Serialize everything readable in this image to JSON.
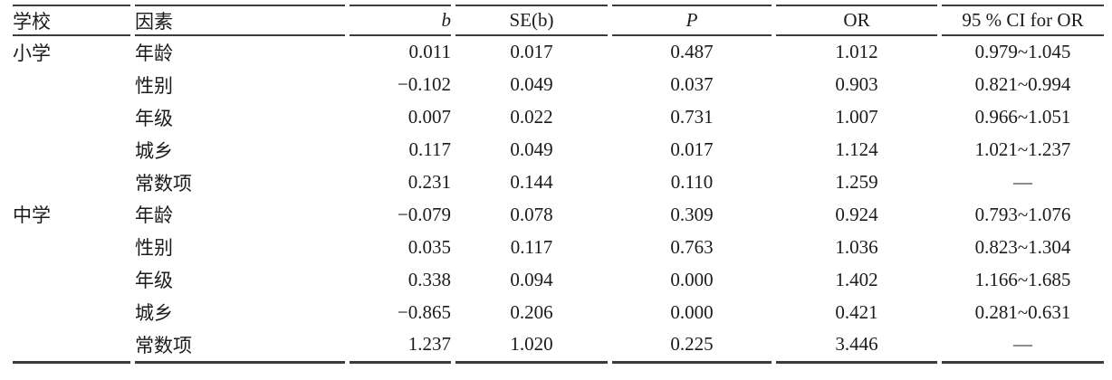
{
  "table": {
    "columns": [
      {
        "key": "school",
        "label": "学校"
      },
      {
        "key": "factor",
        "label": "因素"
      },
      {
        "key": "b",
        "label": "b"
      },
      {
        "key": "se",
        "label": "SE(b)"
      },
      {
        "key": "p",
        "label": "P"
      },
      {
        "key": "or",
        "label": "OR"
      },
      {
        "key": "ci",
        "label": "95 % CI for OR"
      }
    ],
    "rows": [
      {
        "school": "小学",
        "factor": "年龄",
        "b": "0.011",
        "se": "0.017",
        "p": "0.487",
        "or": "1.012",
        "ci": "0.979~1.045"
      },
      {
        "school": "",
        "factor": "性别",
        "b": "−0.102",
        "se": "0.049",
        "p": "0.037",
        "or": "0.903",
        "ci": "0.821~0.994"
      },
      {
        "school": "",
        "factor": "年级",
        "b": "0.007",
        "se": "0.022",
        "p": "0.731",
        "or": "1.007",
        "ci": "0.966~1.051"
      },
      {
        "school": "",
        "factor": "城乡",
        "b": "0.117",
        "se": "0.049",
        "p": "0.017",
        "or": "1.124",
        "ci": "1.021~1.237"
      },
      {
        "school": "",
        "factor": "常数项",
        "b": "0.231",
        "se": "0.144",
        "p": "0.110",
        "or": "1.259",
        "ci": "—"
      },
      {
        "school": "中学",
        "factor": "年龄",
        "b": "−0.079",
        "se": "0.078",
        "p": "0.309",
        "or": "0.924",
        "ci": "0.793~1.076"
      },
      {
        "school": "",
        "factor": "性别",
        "b": "0.035",
        "se": "0.117",
        "p": "0.763",
        "or": "1.036",
        "ci": "0.823~1.304"
      },
      {
        "school": "",
        "factor": "年级",
        "b": "0.338",
        "se": "0.094",
        "p": "0.000",
        "or": "1.402",
        "ci": "1.166~1.685"
      },
      {
        "school": "",
        "factor": "城乡",
        "b": "−0.865",
        "se": "0.206",
        "p": "0.000",
        "or": "0.421",
        "ci": "0.281~0.631"
      },
      {
        "school": "",
        "factor": "常数项",
        "b": "1.237",
        "se": "1.020",
        "p": "0.225",
        "or": "3.446",
        "ci": "—"
      }
    ]
  },
  "colors": {
    "text": "#1b1b1b",
    "rule": "#3c3c3c",
    "background": "#ffffff"
  }
}
